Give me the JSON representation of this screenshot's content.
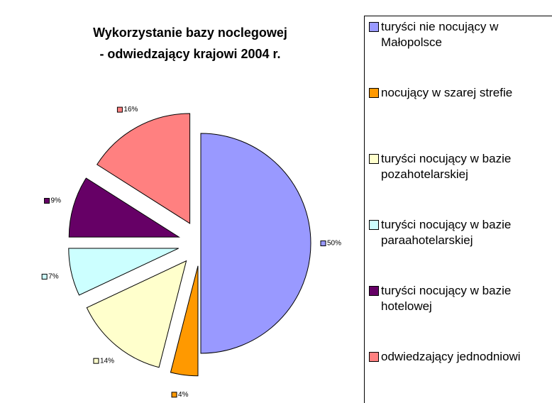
{
  "chart_data": {
    "type": "pie",
    "title": [
      "Wykorzystanie bazy noclegowej",
      "- odwiedzający krajowi 2004 r."
    ],
    "categories": [
      "turyści nie nocujący w Małopolsce",
      "nocujący w szarej strefie",
      "turyści nocujący w bazie pozahotelarskiej",
      "turyści nocujący w bazie paraahotelarskiej",
      "turyści nocujący w bazie hotelowej",
      "odwiedzający jednodniowi"
    ],
    "values": [
      50,
      4,
      14,
      7,
      9,
      16
    ],
    "value_labels": [
      "50%",
      "4%",
      "14%",
      "7%",
      "9%",
      "16%"
    ],
    "colors": [
      "#9999ff",
      "#ff9900",
      "#ffffcc",
      "#ccffff",
      "#660066",
      "#ff8080"
    ],
    "legend": "right"
  }
}
